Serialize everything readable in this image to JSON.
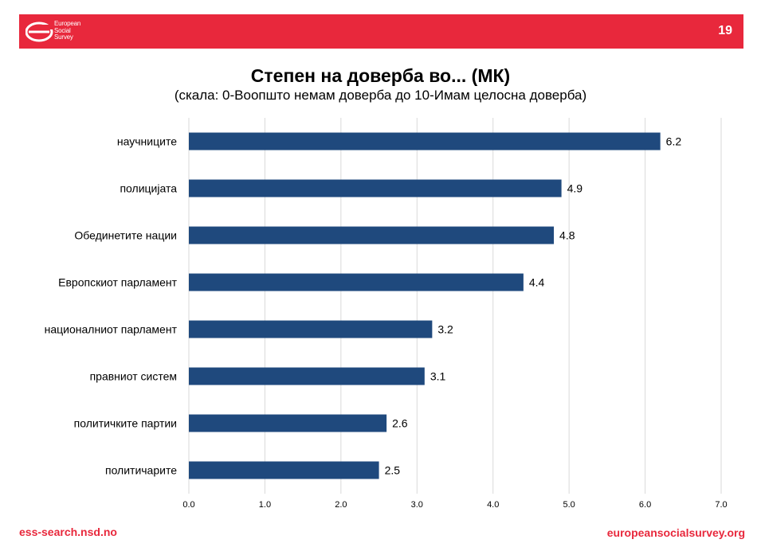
{
  "header": {
    "logo_lines": [
      "European",
      "Social",
      "Survey"
    ],
    "page_number": "19"
  },
  "footer": {
    "left_link": "ess-search.nsd.no",
    "right_link": "europeansocialsurvey.org"
  },
  "colors": {
    "accent": "#e8283c",
    "bar": "#1f497d",
    "grid": "#d9d9d9"
  },
  "chart_data": {
    "type": "bar",
    "orientation": "horizontal",
    "title": "Степен на доверба во... (МК)",
    "subtitle": "(скала: 0-Воопшто немам доверба до 10-Имам целосна доверба)",
    "categories": [
      "научниците",
      "полицијата",
      "Обединетите нации",
      "Европскиот парламент",
      "националниот парламент",
      "правниот систем",
      "политичките партии",
      "политичарите"
    ],
    "values": [
      6.2,
      4.9,
      4.8,
      4.4,
      3.2,
      3.1,
      2.6,
      2.5
    ],
    "value_labels": [
      "6.2",
      "4.9",
      "4.8",
      "4.4",
      "3.2",
      "3.1",
      "2.6",
      "2.5"
    ],
    "xlim": [
      0,
      7
    ],
    "ticks": [
      "0.0",
      "1.0",
      "2.0",
      "3.0",
      "4.0",
      "5.0",
      "6.0",
      "7.0"
    ],
    "grid": true
  }
}
